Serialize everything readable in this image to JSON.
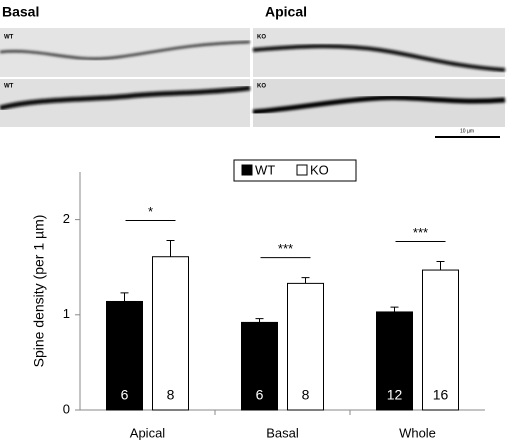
{
  "images": {
    "left_title": "Basal",
    "right_title": "Apical",
    "panel_labels": [
      "WT",
      "WT",
      "KO",
      "KO"
    ],
    "scale_bar": "10 µm"
  },
  "chart_data": {
    "type": "bar",
    "y_label": "Spine density (per 1 µm)",
    "categories": [
      "Apical",
      "Basal",
      "Whole"
    ],
    "series": [
      {
        "name": "WT",
        "color": "#000000",
        "values": [
          1.14,
          0.92,
          1.03
        ],
        "errors": [
          0.09,
          0.04,
          0.05
        ],
        "n": [
          6,
          6,
          12
        ]
      },
      {
        "name": "KO",
        "color": "#ffffff",
        "values": [
          1.61,
          1.33,
          1.47
        ],
        "errors": [
          0.17,
          0.06,
          0.09
        ],
        "n": [
          8,
          8,
          16
        ]
      }
    ],
    "significance": [
      "*",
      "***",
      "***"
    ],
    "ylim": [
      0,
      2.5
    ],
    "yticks": [
      0,
      1,
      2
    ],
    "legend": "top"
  }
}
